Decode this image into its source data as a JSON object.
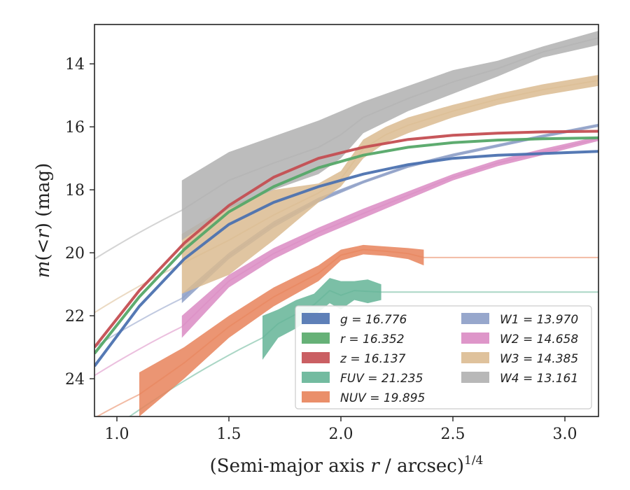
{
  "chart_data": {
    "type": "area",
    "xlabel": "(Semi-major axis r / arcsec)^1/4",
    "ylabel": "m(<r) (mag)",
    "xlim": [
      0.9,
      3.15
    ],
    "ylim": [
      25.2,
      12.75
    ],
    "y_inverted": true,
    "xticks": [
      "1.0",
      "1.5",
      "2.0",
      "2.5",
      "3.0"
    ],
    "yticks": [
      "14",
      "16",
      "18",
      "20",
      "22",
      "24"
    ],
    "legend_position": "lower-right",
    "legend_columns": 2,
    "series": [
      {
        "name": "g",
        "label": "g = 16.776",
        "color": "#4c72b0",
        "kind": "line",
        "x": [
          0.9,
          1.1,
          1.3,
          1.5,
          1.7,
          1.9,
          2.1,
          2.3,
          2.5,
          2.7,
          2.9,
          3.15
        ],
        "y": [
          23.6,
          21.7,
          20.2,
          19.1,
          18.4,
          17.9,
          17.5,
          17.2,
          17.0,
          16.9,
          16.85,
          16.78
        ]
      },
      {
        "name": "r",
        "label": "r = 16.352",
        "color": "#55a868",
        "kind": "line",
        "x": [
          0.9,
          1.1,
          1.3,
          1.5,
          1.7,
          1.9,
          2.1,
          2.3,
          2.5,
          2.7,
          2.9,
          3.15
        ],
        "y": [
          23.2,
          21.4,
          19.9,
          18.7,
          17.9,
          17.3,
          16.9,
          16.65,
          16.5,
          16.42,
          16.38,
          16.35
        ]
      },
      {
        "name": "z",
        "label": "z = 16.137",
        "color": "#c44e52",
        "kind": "line",
        "x": [
          0.9,
          1.1,
          1.3,
          1.5,
          1.7,
          1.9,
          2.1,
          2.3,
          2.5,
          2.7,
          2.9,
          3.15
        ],
        "y": [
          23.0,
          21.2,
          19.7,
          18.5,
          17.6,
          17.0,
          16.65,
          16.4,
          16.27,
          16.2,
          16.16,
          16.14
        ]
      },
      {
        "name": "FUV",
        "label": "FUV = 21.235",
        "color": "#64b496",
        "kind": "band",
        "x": [
          1.65,
          1.72,
          1.8,
          1.88,
          1.95,
          2.0,
          2.06,
          2.12,
          2.18
        ],
        "y_low": [
          23.4,
          22.7,
          22.4,
          22.0,
          21.6,
          21.8,
          21.5,
          21.6,
          21.5
        ],
        "y_high": [
          22.0,
          21.8,
          21.5,
          21.3,
          20.8,
          20.9,
          20.9,
          20.85,
          21.0
        ]
      },
      {
        "name": "NUV",
        "label": "NUV = 19.895",
        "color": "#e8835a",
        "kind": "band",
        "x": [
          1.1,
          1.3,
          1.5,
          1.7,
          1.9,
          2.0,
          2.1,
          2.2,
          2.3,
          2.37
        ],
        "y_low": [
          25.2,
          24.0,
          22.7,
          21.7,
          20.9,
          20.25,
          20.05,
          20.1,
          20.2,
          20.4
        ],
        "y_high": [
          23.8,
          23.0,
          22.0,
          21.1,
          20.4,
          19.9,
          19.75,
          19.8,
          19.85,
          19.9
        ]
      },
      {
        "name": "W1",
        "label": "W1 = 13.970",
        "color": "#8c9dc6",
        "kind": "band",
        "x": [
          1.29,
          1.5,
          1.7,
          1.9,
          2.1,
          2.3,
          2.5,
          2.7,
          2.9,
          3.15
        ],
        "y_low": [
          21.6,
          20.2,
          19.2,
          18.4,
          17.8,
          17.3,
          16.95,
          16.65,
          16.35,
          16.0
        ],
        "y_high": [
          21.3,
          20.0,
          19.0,
          18.25,
          17.7,
          17.2,
          16.85,
          16.55,
          16.25,
          15.9
        ]
      },
      {
        "name": "W2",
        "label": "W2 = 14.658",
        "color": "#da8bc3",
        "kind": "band",
        "x": [
          1.29,
          1.5,
          1.7,
          1.9,
          2.1,
          2.3,
          2.5,
          2.7,
          2.9,
          3.15
        ],
        "y_low": [
          22.7,
          21.1,
          20.2,
          19.5,
          18.9,
          18.3,
          17.7,
          17.25,
          16.9,
          16.45
        ],
        "y_high": [
          22.0,
          20.7,
          19.85,
          19.2,
          18.6,
          18.05,
          17.5,
          17.05,
          16.7,
          16.3
        ]
      },
      {
        "name": "W3",
        "label": "W3 = 14.385",
        "color": "#dbbb91",
        "kind": "band",
        "x": [
          1.29,
          1.5,
          1.7,
          1.9,
          2.0,
          2.1,
          2.2,
          2.3,
          2.5,
          2.7,
          2.9,
          3.15
        ],
        "y_low": [
          21.3,
          20.7,
          19.6,
          18.4,
          17.9,
          17.0,
          16.5,
          16.2,
          15.7,
          15.3,
          15.0,
          14.7
        ],
        "y_high": [
          19.4,
          18.5,
          18.0,
          17.8,
          17.4,
          16.4,
          16.0,
          15.7,
          15.3,
          14.95,
          14.65,
          14.35
        ]
      },
      {
        "name": "W4",
        "label": "W4 = 13.161",
        "color": "#b0b0b0",
        "kind": "band",
        "x": [
          1.29,
          1.5,
          1.7,
          1.9,
          2.0,
          2.1,
          2.3,
          2.5,
          2.7,
          2.9,
          3.15
        ],
        "y_low": [
          19.6,
          18.6,
          18.0,
          17.5,
          17.0,
          16.2,
          15.5,
          14.95,
          14.4,
          13.8,
          13.4
        ],
        "y_high": [
          17.7,
          16.8,
          16.3,
          15.8,
          15.5,
          15.2,
          14.7,
          14.2,
          13.9,
          13.45,
          12.95
        ]
      }
    ]
  }
}
